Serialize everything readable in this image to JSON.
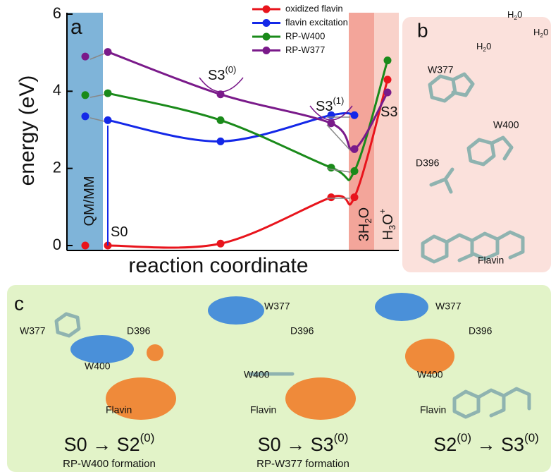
{
  "chart_data": {
    "type": "line",
    "panel_label": "a",
    "y_label": "energy (eV)",
    "x_label": "reaction coordinate",
    "categories": [
      null,
      null,
      null,
      null,
      null,
      null
    ],
    "ylim": [
      0,
      6
    ],
    "yticks": [
      0,
      2,
      4,
      6
    ],
    "legend_position": "top-right",
    "series": [
      {
        "name": "oxidized flavin",
        "color": "#e8141c",
        "values": [
          0,
          0,
          0.05,
          1.25,
          1.25,
          4.3
        ]
      },
      {
        "name": "flavin excitation",
        "color": "#1428e8",
        "values": [
          3.35,
          3.25,
          2.7,
          3.38,
          3.38,
          null
        ]
      },
      {
        "name": "RP-W400",
        "color": "#1a8a1a",
        "values": [
          3.9,
          3.95,
          3.25,
          2.02,
          1.93,
          4.8
        ]
      },
      {
        "name": "RP-W377",
        "color": "#7a1a8a",
        "values": [
          4.9,
          5.02,
          3.92,
          3.17,
          2.5,
          3.97
        ]
      }
    ],
    "annotations": [
      {
        "text": "QM/MM"
      },
      {
        "text": "S0"
      },
      {
        "text": "S3",
        "sup": "(0)"
      },
      {
        "text": "S3",
        "sup": "(1)"
      },
      {
        "text": "S3"
      },
      {
        "text": "3H",
        "sub": "2",
        "rest": "O"
      },
      {
        "text": "H",
        "sub": "3",
        "rest": "O",
        "sup": "+"
      }
    ]
  },
  "panel_b": {
    "label": "b",
    "molecules": [
      "W377",
      "W400",
      "D396",
      "Flavin"
    ],
    "water": [
      {
        "text": "H",
        "sub": "2",
        "rest": "0"
      },
      {
        "text": "H",
        "sub": "2",
        "rest": "0"
      },
      {
        "text": "H",
        "sub": "2",
        "rest": "0"
      }
    ]
  },
  "panel_c": {
    "label": "c",
    "panels": [
      {
        "labels": [
          "W377",
          "D396",
          "W400",
          "Flavin"
        ],
        "formula": [
          {
            "t": "S0 → S2"
          },
          {
            "sup": "(0)"
          }
        ],
        "caption": "RP-W400 formation"
      },
      {
        "labels": [
          "W377",
          "D396",
          "W400",
          "Flavin"
        ],
        "formula": [
          {
            "t": "S0 → S3"
          },
          {
            "sup": "(0)"
          }
        ],
        "caption": "RP-W377 formation"
      },
      {
        "labels": [
          "W377",
          "D396",
          "W400",
          "Flavin"
        ],
        "formula": [
          {
            "t": "S2"
          },
          {
            "sup": "(0)"
          },
          {
            "t": " → S3"
          },
          {
            "sup": "(0)"
          }
        ]
      }
    ]
  }
}
